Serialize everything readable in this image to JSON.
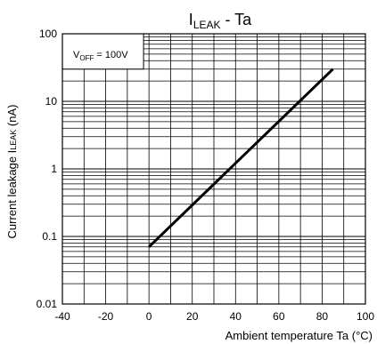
{
  "chart_data": {
    "type": "line",
    "title": {
      "main": "I",
      "sub": "LEAK",
      "rest": " - Ta"
    },
    "xlabel": "Ambient temperature Ta (°C)",
    "ylabel": "Current leakage I",
    "ylabel_sub": "LEAK",
    "ylabel_unit": " (nA)",
    "xlim": [
      -40,
      100
    ],
    "ylim": [
      0.01,
      100
    ],
    "yscale": "log",
    "grid": true,
    "x_ticks": [
      -40,
      -20,
      0,
      20,
      40,
      60,
      80,
      100
    ],
    "x_tick_labels": [
      "-40",
      "-20",
      "0",
      "20",
      "40",
      "60",
      "80",
      "100"
    ],
    "y_ticks": [
      0.01,
      0.1,
      1,
      10,
      100
    ],
    "y_tick_labels": [
      "0.01",
      "0.1",
      "1",
      "10",
      "100"
    ],
    "annotation": {
      "main": "V",
      "sub": "OFF",
      "rest": " = 100V"
    },
    "series": [
      {
        "x": [
          0,
          85
        ],
        "y": [
          0.07,
          30
        ]
      }
    ]
  }
}
